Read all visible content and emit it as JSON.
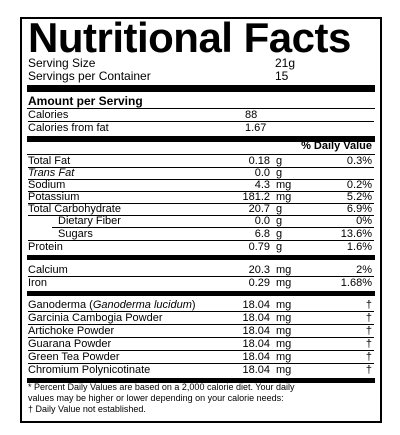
{
  "title": "Nutritional Facts",
  "serving": {
    "size_label": "Serving Size",
    "size_value": "21g",
    "per_container_label": "Servings per Container",
    "per_container_value": "15"
  },
  "amount_header": "Amount per Serving",
  "calories": {
    "label": "Calories",
    "value": "88",
    "fat_label": "Calories from fat",
    "fat_value": "1.67"
  },
  "dv_header": "% Daily Value",
  "nutrients": [
    {
      "name": "Total Fat",
      "value": "0.18",
      "unit": "g",
      "dv": "0.3%"
    },
    {
      "name": "Trans Fat",
      "value": "0.0",
      "unit": "g",
      "dv": ""
    },
    {
      "name": "Sodium",
      "value": "4.3",
      "unit": "mg",
      "dv": "0.2%"
    },
    {
      "name": "Potassium",
      "value": "181.2",
      "unit": "mg",
      "dv": "5.2%"
    },
    {
      "name": "Total Carbohydrate",
      "value": "20.7",
      "unit": "g",
      "dv": "6.9%"
    },
    {
      "name": "Dietary Fiber",
      "value": "0.0",
      "unit": "g",
      "dv": "0%"
    },
    {
      "name": "Sugars",
      "value": "6.8",
      "unit": "g",
      "dv": "13.6%"
    },
    {
      "name": "Protein",
      "value": "0.79",
      "unit": "g",
      "dv": "1.6%"
    }
  ],
  "minerals": [
    {
      "name": "Calcium",
      "value": "20.3",
      "unit": "mg",
      "dv": "2%"
    },
    {
      "name": "Iron",
      "value": "0.29",
      "unit": "mg",
      "dv": "1.68%"
    }
  ],
  "ingredients": [
    {
      "name": "Ganoderma (",
      "latin": "Ganoderma lucidum",
      "close": ")",
      "value": "18.04",
      "unit": "mg",
      "dv": "†"
    },
    {
      "name": "Garcinia Cambogia Powder",
      "value": "18.04",
      "unit": "mg",
      "dv": "†"
    },
    {
      "name": "Artichoke Powder",
      "value": "18.04",
      "unit": "mg",
      "dv": "†"
    },
    {
      "name": "Guarana Powder",
      "value": "18.04",
      "unit": "mg",
      "dv": "†"
    },
    {
      "name": "Green Tea Powder",
      "value": "18.04",
      "unit": "mg",
      "dv": "†"
    },
    {
      "name": "Chromium Polynicotinate",
      "value": "18.04",
      "unit": "mg",
      "dv": "†"
    }
  ],
  "footnote": {
    "line1": "* Percent Daily Values are based on a 2,000 calorie diet. Your daily",
    "line2": "values may be higher or lower depending on your calorie needs:",
    "line3": "† Daily Value not established."
  }
}
